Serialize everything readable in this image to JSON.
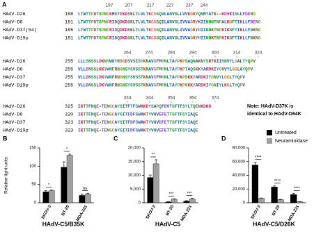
{
  "alignment": {
    "panel": "A",
    "blocks": [
      {
        "ruler": [
          197,
          207,
          217,
          227,
          237,
          244
        ],
        "rows": [
          {
            "name": "HAdV-D26",
            "start": 188,
            "sequence": "LTWTTPDTSPNCKMSTEKDSKLTLVLTKCGSQVLANVSLLVVKGKYQNMTATK--KDVKISLLFDENG"
          },
          {
            "name": "HAdV-D8",
            "start": 181,
            "sequence": "LTWTTPDTSPNCRIDQDKDSKLTLVLTKCGSQILANVSLIVVAGRYKIINNNTNPALKGFTIKLLFDENG"
          },
          {
            "name": "HAdV-D37(64)",
            "start": 185,
            "sequence": "LTWTTPDTSPNCRIDQDKDSKLTLVLTKCGSQILANVSLIVVAGKYHIINNKTNPKIKSFTIKLLFNKNG"
          },
          {
            "name": "HAdV-D19p",
            "start": 181,
            "sequence": "LTWTTPDTSPNCRIDQDKDSKLTLVLTKCGSQILANVSLIVVAGKYHIINNKTNPKIKSFTIKLLFNKNG"
          }
        ]
      },
      {
        "ruler": [
          264,
          274,
          284,
          294,
          304,
          314,
          324
        ],
        "rows": [
          {
            "name": "HAdV-D26",
            "start": 255,
            "sequence": "LLLSNSSLDKNYWNYRSGDSVSESYKNAVGFMPNLTAYPKPSAQNAKNYSRTKIISNVYLGALTYQPV"
          },
          {
            "name": "HAdV-D8",
            "start": 255,
            "sequence": "VLLDNSSLKKYWNFRNGNSYSVSSTKNAVGFMPNLTAYPKPTAQSKKYARDKIYGNVYLGGLAYQPV"
          },
          {
            "name": "HAdV-D37",
            "start": 255,
            "sequence": "VLLDNSSLDKYWNFRNGNSYSVSSTKNAVGFMPNLTAYPKPSKKYARDKIYGNVYLGGLTYQPV"
          },
          {
            "name": "HAdV-D19p",
            "start": 255,
            "sequence": "VLLDNSSLDKYWNFRNGNSYSVSSTKNAVGFMPNLTAYPKPSKKYARDKIYGNIYLKGLTYQPV"
          }
        ]
      },
      {
        "ruler": [
          334,
          344,
          354,
          364,
          374
        ],
        "rows": [
          {
            "name": "HAdV-D26",
            "start": 325,
            "sequence": "IKTTFNQE-TENGCAYSITFTFSWKKDYSAPQFDVTSFTFSYLTQENKDKD"
          },
          {
            "name": "HAdV-D8",
            "start": 320,
            "sequence": "IKTTFNQE-TENGCAYSITFDFSWAKTYVNVEFETTSFTFSYIAQE"
          },
          {
            "name": "HAdV-D37",
            "start": 323,
            "sequence": "IKTTFNQE-TENGCAYSITFDFSWAKTYVNVEFETTSFTFSYIAQE"
          },
          {
            "name": "HAdV-D19p",
            "start": 323,
            "sequence": "IKTTFNQE-TENGCAYSITFDFSWAKTYVNVEFETTSFTFSYIAQE"
          }
        ]
      }
    ],
    "note": [
      "Note: HAdV-D37K is",
      "identical to HAdV-D64K"
    ]
  },
  "chart_data": [
    {
      "type": "bar",
      "panel": "B",
      "title": "HAdV-C5/B35K",
      "ylabel": "Relative light units",
      "categories": [
        "SKOV-3",
        "BT-20",
        "MDA-231"
      ],
      "series": [
        {
          "color": "#000000",
          "values": [
            30,
            97,
            20
          ],
          "errors": [
            3,
            15,
            4
          ]
        },
        {
          "color": "#a0a0a0",
          "values": [
            33,
            130,
            23
          ],
          "errors": [
            2,
            3,
            3
          ]
        }
      ],
      "significance": [
        "*",
        "*",
        "ns"
      ],
      "ylim": [
        0,
        150
      ],
      "yticks": [
        0,
        50,
        100,
        150
      ]
    },
    {
      "type": "bar",
      "panel": "C",
      "title": "HAdV-C5",
      "categories": [
        "SKOV-3",
        "BT-20",
        "MDA-231"
      ],
      "series": [
        {
          "color": "#000000",
          "values": [
            9200,
            300,
            600
          ],
          "errors": [
            900,
            100,
            150
          ]
        },
        {
          "color": "#a0a0a0",
          "values": [
            14200,
            1300,
            1400
          ],
          "errors": [
            1500,
            150,
            200
          ]
        }
      ],
      "significance": [
        "**",
        "***",
        "***"
      ],
      "ylim": [
        0,
        20000
      ],
      "yticks": [
        {
          "value": 0,
          "label": "0"
        },
        {
          "value": 5000,
          "label": "5,000"
        },
        {
          "value": 10000,
          "label": "10,000"
        },
        {
          "value": 15000,
          "label": "15,000"
        },
        {
          "value": 20000,
          "label": "20,000"
        }
      ]
    },
    {
      "type": "bar",
      "panel": "D",
      "title": "HAdV-C5/D26K",
      "categories": [
        "SKOV-3",
        "BT-20",
        "MDA-231"
      ],
      "series": [
        {
          "name": "Untreated",
          "color": "#000000",
          "values": [
            55000,
            23000,
            12000
          ],
          "errors": [
            4000,
            1500,
            1500
          ]
        },
        {
          "name": "Neuraminidase",
          "color": "#a0a0a0",
          "values": [
            6500,
            4500,
            1500
          ],
          "errors": [
            500,
            400,
            300
          ]
        }
      ],
      "significance": [
        "****",
        "****",
        "****"
      ],
      "ylim": [
        0,
        80000
      ],
      "yticks": [
        {
          "value": 0,
          "label": "0"
        },
        {
          "value": 20000,
          "label": "20,000"
        },
        {
          "value": 40000,
          "label": "40,000"
        },
        {
          "value": 60000,
          "label": "60,000"
        },
        {
          "value": 80000,
          "label": "80,000"
        }
      ]
    }
  ]
}
